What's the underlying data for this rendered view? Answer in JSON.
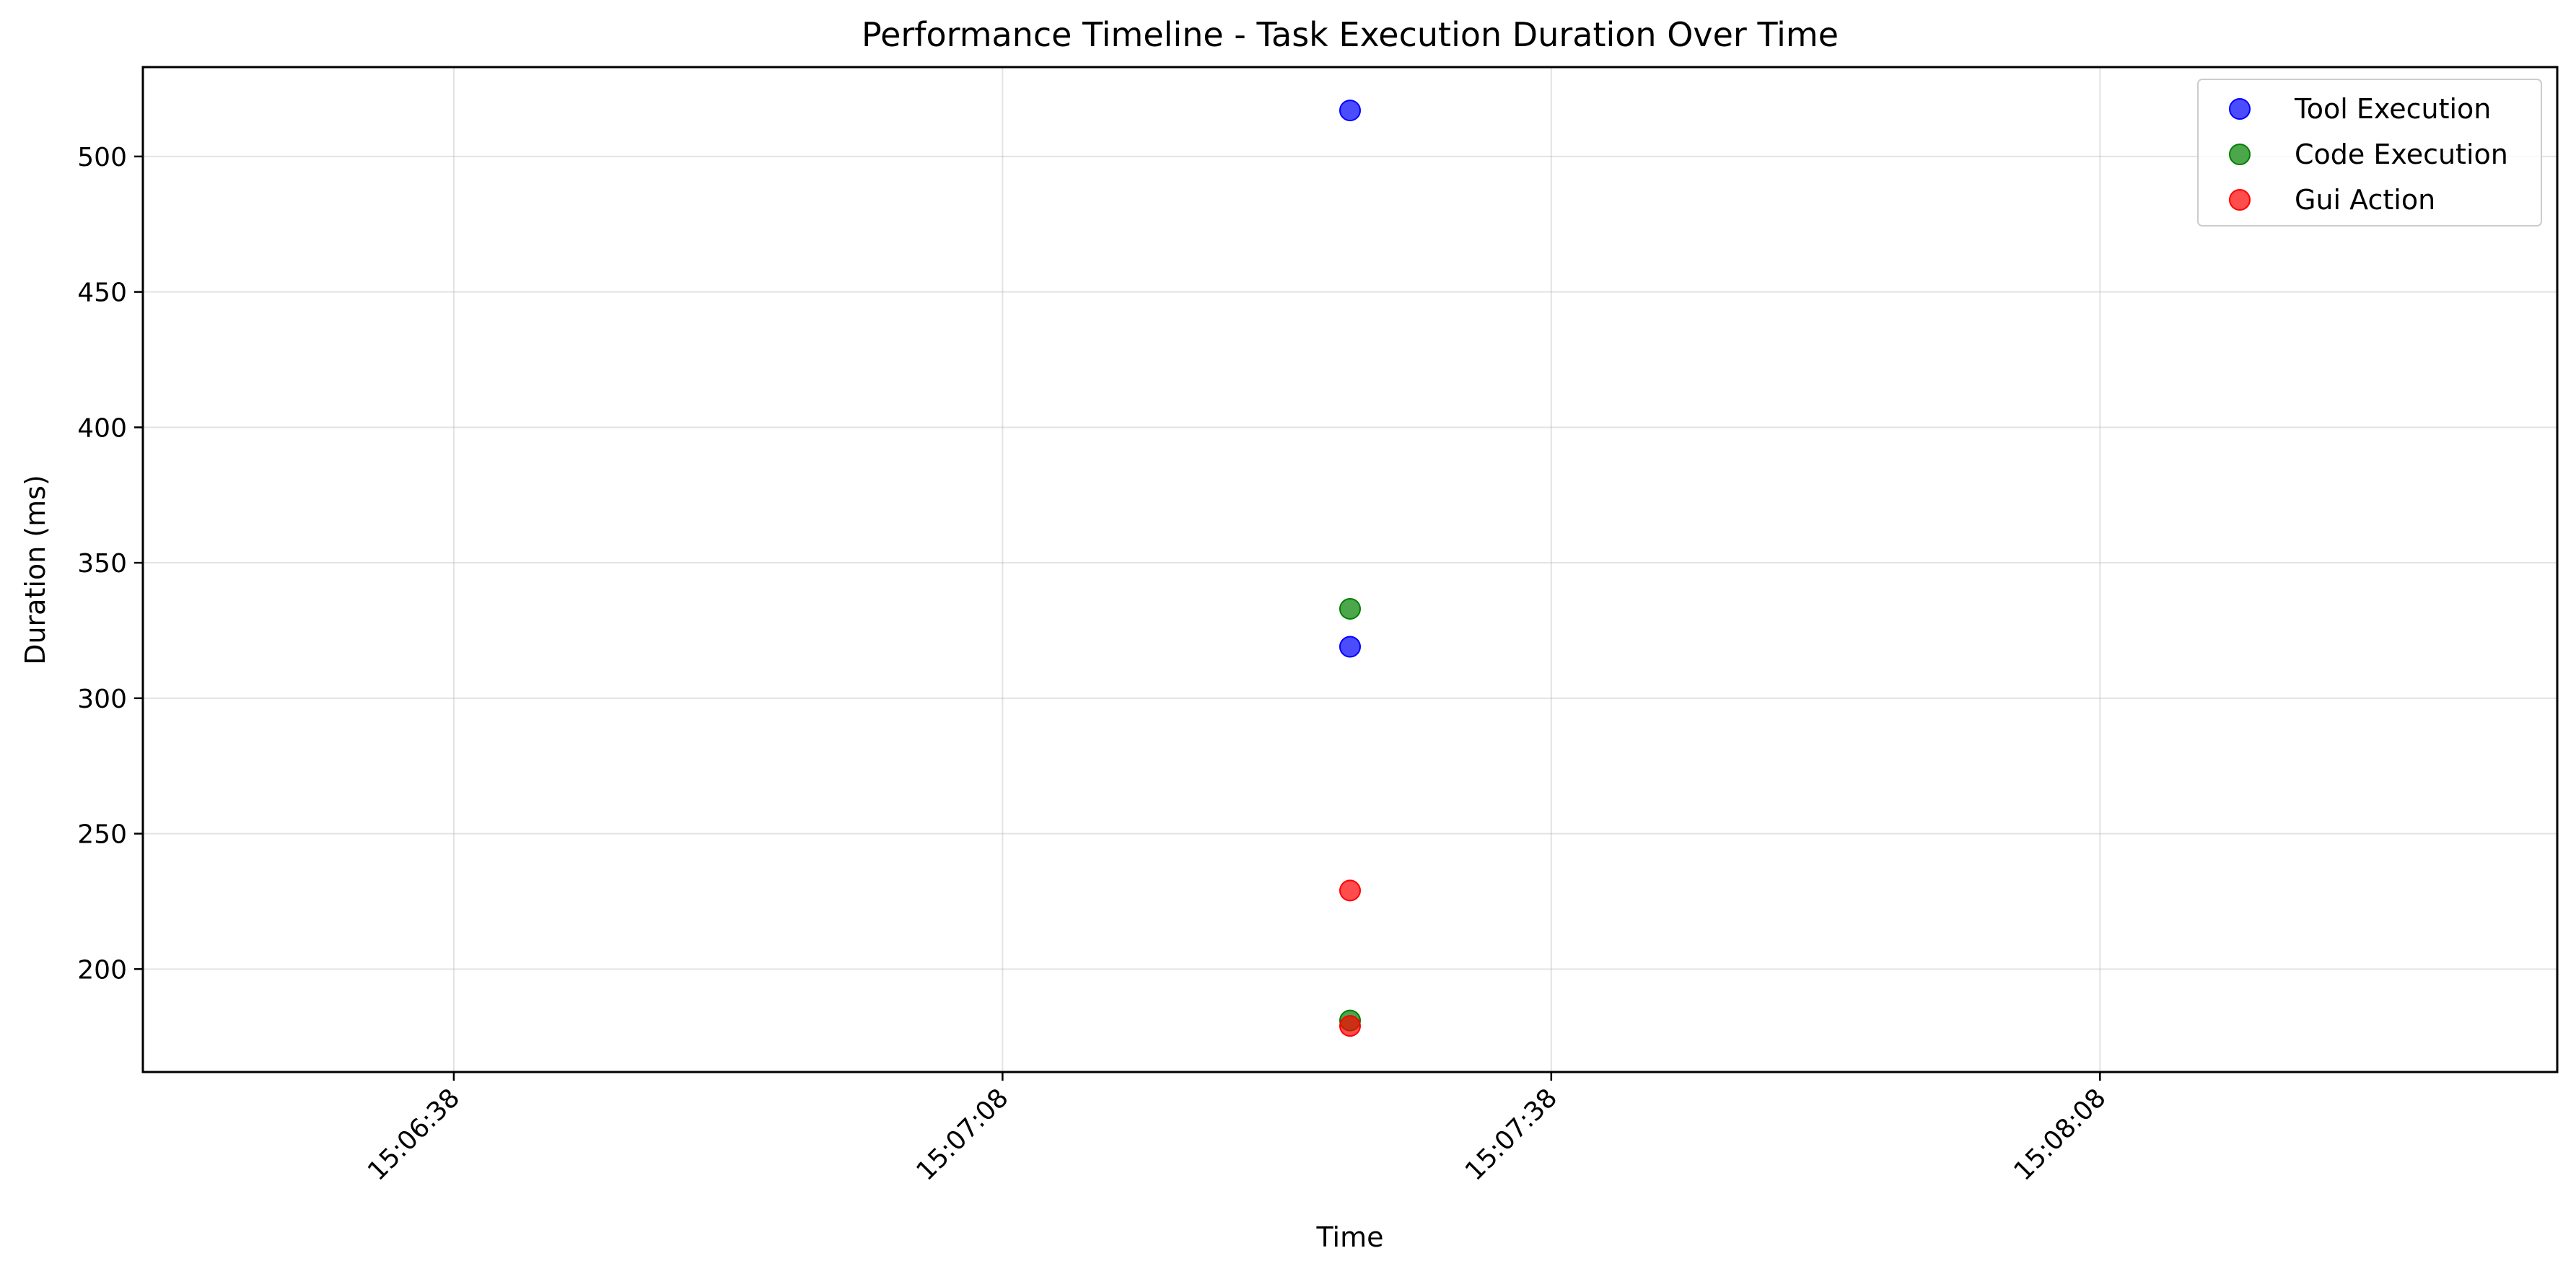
{
  "chart_data": {
    "type": "scatter",
    "title": "Performance Timeline - Task Execution Duration Over Time",
    "xlabel": "Time",
    "ylabel": "Duration (ms)",
    "x_ticks": [
      "15:06:38",
      "15:07:08",
      "15:07:38",
      "15:08:08"
    ],
    "xlim": [
      "15:06:21",
      "15:08:33"
    ],
    "y_ticks": [
      200,
      250,
      300,
      350,
      400,
      450,
      500
    ],
    "ylim": [
      162,
      533
    ],
    "grid": true,
    "legend_position": "top-right",
    "series": [
      {
        "name": "Tool Execution",
        "color": "#0000ff",
        "points": [
          {
            "x": "15:07:27",
            "y": 517
          },
          {
            "x": "15:07:27",
            "y": 319
          }
        ]
      },
      {
        "name": "Code Execution",
        "color": "#008000",
        "points": [
          {
            "x": "15:07:27",
            "y": 333
          },
          {
            "x": "15:07:27",
            "y": 181
          }
        ]
      },
      {
        "name": "Gui Action",
        "color": "#ff0000",
        "points": [
          {
            "x": "15:07:27",
            "y": 229
          },
          {
            "x": "15:07:27",
            "y": 179
          }
        ]
      }
    ]
  }
}
